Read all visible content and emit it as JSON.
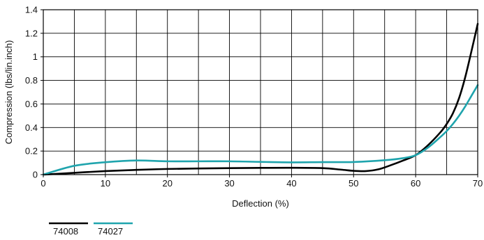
{
  "chart_data": {
    "type": "line",
    "xlabel": "Deflection (%)",
    "ylabel": "Compression (lbs/lin.inch)",
    "xlim": [
      0,
      70
    ],
    "ylim": [
      0,
      1.4
    ],
    "grid": true,
    "legend_placement": "bottom-left",
    "x_ticks": [
      0,
      10,
      20,
      30,
      40,
      50,
      60,
      70
    ],
    "y_ticks": [
      0,
      0.2,
      0.4,
      0.6,
      0.8,
      1,
      1.2,
      1.4
    ],
    "y_tick_labels": [
      "0",
      "0.2",
      "0.4",
      "0.6",
      "0.8",
      "1",
      "1.2",
      "1.4"
    ],
    "series": [
      {
        "name": "74008",
        "color": "#000000",
        "x": [
          0,
          5,
          10,
          15,
          20,
          25,
          30,
          35,
          40,
          45,
          48,
          50,
          52,
          54,
          56,
          58,
          60,
          62,
          64,
          65,
          66,
          67,
          68,
          69,
          70
        ],
        "y": [
          0,
          0.015,
          0.03,
          0.04,
          0.048,
          0.052,
          0.055,
          0.057,
          0.058,
          0.055,
          0.042,
          0.032,
          0.03,
          0.045,
          0.08,
          0.12,
          0.165,
          0.25,
          0.36,
          0.43,
          0.52,
          0.65,
          0.83,
          1.05,
          1.28
        ]
      },
      {
        "name": "74027",
        "color": "#1fa4ad",
        "x": [
          0,
          5,
          10,
          15,
          20,
          25,
          30,
          35,
          40,
          45,
          50,
          55,
          58,
          60,
          62,
          64,
          65,
          66,
          67,
          68,
          69,
          70
        ],
        "y": [
          0,
          0.075,
          0.105,
          0.12,
          0.113,
          0.113,
          0.113,
          0.108,
          0.104,
          0.106,
          0.107,
          0.122,
          0.14,
          0.165,
          0.23,
          0.32,
          0.37,
          0.43,
          0.5,
          0.58,
          0.67,
          0.76
        ]
      }
    ]
  }
}
